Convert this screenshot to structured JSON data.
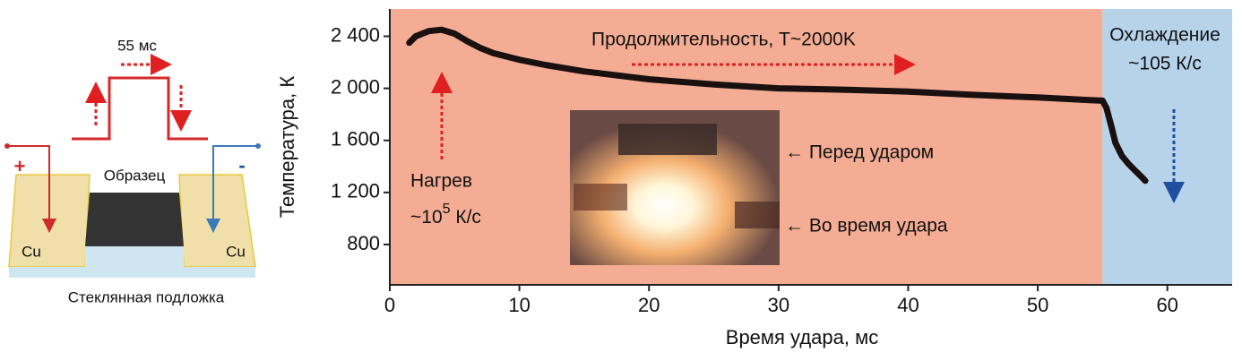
{
  "chart_data": {
    "type": "line",
    "x_label": "Время удара, мс",
    "y_label": "Температура, К",
    "xlim": [
      0,
      65
    ],
    "ylim": [
      490,
      2610
    ],
    "xticks": [
      0,
      10,
      20,
      30,
      40,
      50,
      60
    ],
    "yticks": [
      {
        "value": 2400,
        "label": "2 400"
      },
      {
        "value": 2000,
        "label": "2 000"
      },
      {
        "value": 1600,
        "label": "1 600"
      },
      {
        "value": 1200,
        "label": "1 200"
      },
      800
    ],
    "regions": [
      {
        "start": 0,
        "end": 55,
        "color": "#f4ad94"
      },
      {
        "start": 55,
        "end": 65,
        "color": "#b7d3ea"
      }
    ],
    "series": [
      {
        "color": "#1a1010",
        "x": [
          1.5,
          2,
          3,
          4,
          5,
          6,
          7,
          8,
          10,
          12,
          15,
          20,
          25,
          30,
          35,
          40,
          45,
          50,
          54,
          55,
          55.3,
          55.7,
          56,
          56.5,
          57,
          57.5,
          58,
          58.3
        ],
        "values": [
          2350,
          2400,
          2440,
          2450,
          2420,
          2360,
          2310,
          2270,
          2220,
          2180,
          2130,
          2070,
          2030,
          2000,
          1990,
          1975,
          1950,
          1930,
          1910,
          1905,
          1850,
          1700,
          1580,
          1480,
          1420,
          1370,
          1320,
          1290
        ]
      }
    ],
    "annotations": {
      "duration": "Продолжительность, T~2000K",
      "cooling": "Охлаждение",
      "cooling_rate": "~105 К/с",
      "heating": "Нагрев",
      "heating_rate": {
        "base": "~10",
        "sup": "5",
        "unit": " К/с"
      }
    }
  },
  "photo": {
    "before": "← Перед ударом",
    "during": "← Во время удара"
  },
  "schematic": {
    "pulse": "55 мс",
    "plus": "+",
    "minus": "-",
    "sample": "Образец",
    "cu_left": "Cu",
    "cu_right": "Cu",
    "substrate": "Стеклянная подложка"
  }
}
